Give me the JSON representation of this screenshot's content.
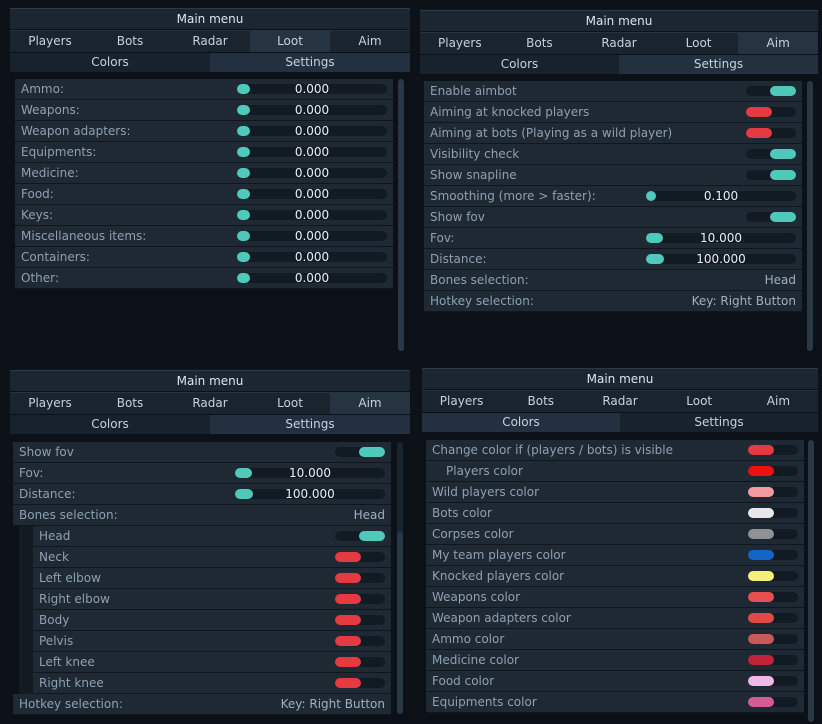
{
  "header": "Main menu",
  "tabs": [
    "Players",
    "Bots",
    "Radar",
    "Loot",
    "Aim"
  ],
  "subtabs": [
    "Colors",
    "Settings"
  ],
  "panel1": {
    "rows": [
      {
        "label": "Ammo:",
        "value": "0.000"
      },
      {
        "label": "Weapons:",
        "value": "0.000"
      },
      {
        "label": "Weapon adapters:",
        "value": "0.000"
      },
      {
        "label": "Equipments:",
        "value": "0.000"
      },
      {
        "label": "Medicine:",
        "value": "0.000"
      },
      {
        "label": "Food:",
        "value": "0.000"
      },
      {
        "label": "Keys:",
        "value": "0.000"
      },
      {
        "label": "Miscellaneous items:",
        "value": "0.000"
      },
      {
        "label": "Containers:",
        "value": "0.000"
      },
      {
        "label": "Other:",
        "value": "0.000"
      }
    ]
  },
  "panel2": {
    "enable_aimbot": "Enable aimbot",
    "aim_knocked": "Aiming at knocked players",
    "aim_bots": "Aiming at bots (Playing as a wild player)",
    "visibility": "Visibility check",
    "snapline": "Show snapline",
    "smoothing": "Smoothing (more > faster):",
    "smoothing_val": "0.100",
    "show_fov": "Show fov",
    "fov": "Fov:",
    "fov_val": "10.000",
    "distance": "Distance:",
    "distance_val": "100.000",
    "bones": "Bones selection:",
    "bones_val": "Head",
    "hotkey": "Hotkey selection:",
    "hotkey_val": "Key: Right Button"
  },
  "panel3": {
    "show_fov": "Show fov",
    "fov": "Fov:",
    "fov_val": "10.000",
    "distance": "Distance:",
    "distance_val": "100.000",
    "bones": "Bones selection:",
    "bones_val": "Head",
    "bone_list": [
      "Head",
      "Neck",
      "Left elbow",
      "Right elbow",
      "Body",
      "Pelvis",
      "Left knee",
      "Right knee"
    ],
    "hotkey": "Hotkey selection:",
    "hotkey_val": "Key: Right Button"
  },
  "panel4": {
    "rows": [
      {
        "label": "Change color if (players / bots) is visible",
        "color": "#e53a3f"
      },
      {
        "label": "Players color",
        "color": "#ee1111"
      },
      {
        "label": "Wild players color",
        "color": "#f29aa0"
      },
      {
        "label": "Bots color",
        "color": "#e8e8e8"
      },
      {
        "label": "Corpses color",
        "color": "#8e9296"
      },
      {
        "label": "My team players color",
        "color": "#1565c8"
      },
      {
        "label": "Knocked players color",
        "color": "#f4f07a"
      },
      {
        "label": "Weapons color",
        "color": "#e8504f"
      },
      {
        "label": "Weapon adapters color",
        "color": "#e04a45"
      },
      {
        "label": "Ammo color",
        "color": "#c85a5a"
      },
      {
        "label": "Medicine color",
        "color": "#c0233a"
      },
      {
        "label": "Food color",
        "color": "#f0b8e8"
      },
      {
        "label": "Equipments color",
        "color": "#d85a92"
      }
    ]
  }
}
